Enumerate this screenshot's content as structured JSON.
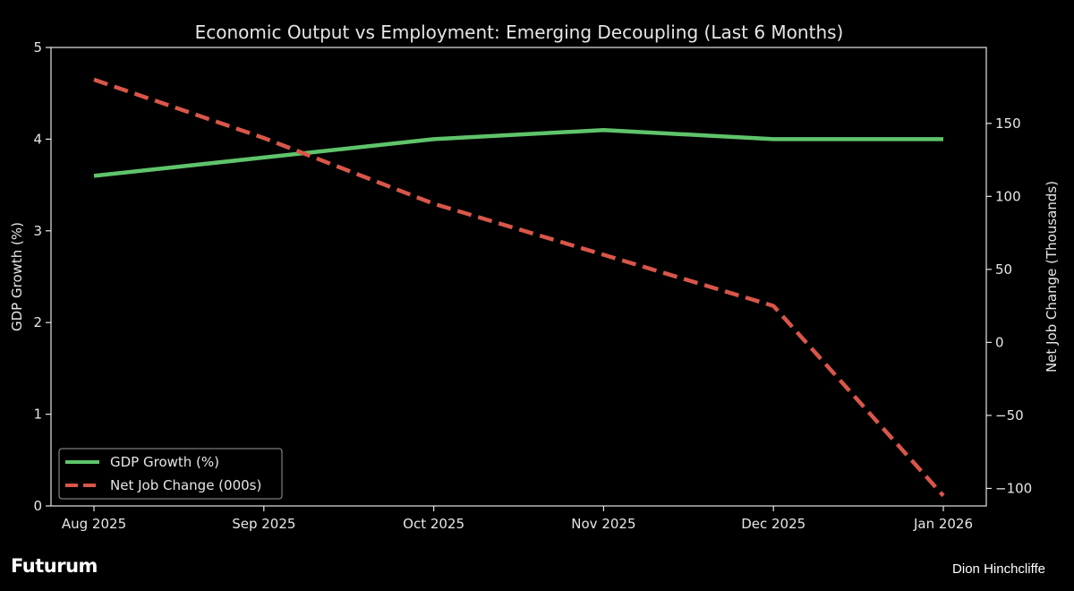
{
  "chart_data": {
    "type": "line",
    "title": "Economic Output vs Employment: Emerging Decoupling (Last 6 Months)",
    "categories": [
      "Aug 2025",
      "Sep 2025",
      "Oct 2025",
      "Nov 2025",
      "Dec 2025",
      "Jan 2026"
    ],
    "ylabel_left": "GDP Growth (%)",
    "ylabel_right": "Net Job Change (Thousands)",
    "ylim_left": [
      0,
      5
    ],
    "yticks_left": [
      0,
      1,
      2,
      3,
      4,
      5
    ],
    "ylim_right": [
      -112,
      202
    ],
    "yticks_right": [
      -100,
      -50,
      0,
      50,
      100,
      150
    ],
    "grid": false,
    "legend_position": "lower-left",
    "series": [
      {
        "name": "GDP Growth (%)",
        "axis": "left",
        "style": "solid",
        "color": "#5fc46b",
        "values": [
          3.6,
          3.8,
          4.0,
          4.1,
          4.0,
          4.0
        ]
      },
      {
        "name": "Net Job Change (000s)",
        "axis": "right",
        "style": "dashed",
        "color": "#d9564a",
        "values": [
          180,
          140,
          95,
          60,
          25,
          -105
        ]
      }
    ]
  },
  "footer": {
    "brand": "Futurum",
    "author": "Dion Hinchcliffe"
  },
  "colors": {
    "background": "#000000",
    "axes": "#e6e6e6",
    "text": "#e6e6e6"
  }
}
